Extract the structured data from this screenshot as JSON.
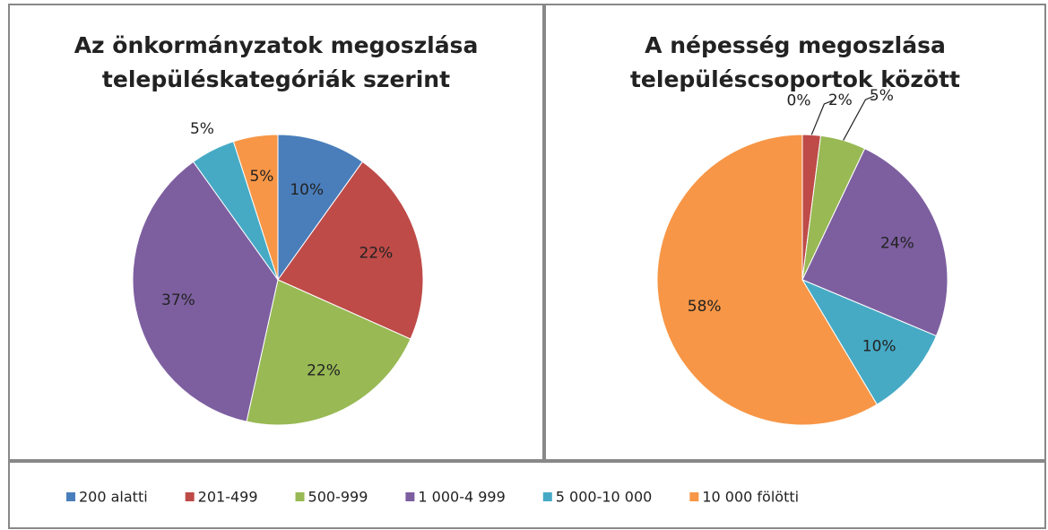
{
  "chart_data": [
    {
      "type": "pie",
      "title": [
        "Az önkormányzatok megoszlása",
        "településkategóriák szerint"
      ],
      "categories": [
        "200 alatti",
        "201-499",
        "500-999",
        "1 000-4 999",
        "5 000-10 000",
        "10 000 fölötti"
      ],
      "values": [
        10,
        22,
        22,
        37,
        5,
        5
      ],
      "value_labels": [
        "10%",
        "22%",
        "22%",
        "37%",
        "5%",
        "5%"
      ],
      "colors": [
        "#4a7ebb",
        "#be4b48",
        "#98b954",
        "#7d5fa0",
        "#46aac5",
        "#f79646"
      ]
    },
    {
      "type": "pie",
      "title": [
        "A népesség megoszlása",
        "településcsoportok között"
      ],
      "categories": [
        "200 alatti",
        "201-499",
        "500-999",
        "1 000-4 999",
        "5 000-10 000",
        "10 000 fölötti"
      ],
      "values": [
        0,
        2,
        5,
        24,
        10,
        58
      ],
      "value_labels": [
        "0%",
        "2%",
        "5%",
        "24%",
        "10%",
        "58%"
      ],
      "colors": [
        "#4a7ebb",
        "#be4b48",
        "#98b954",
        "#7d5fa0",
        "#46aac5",
        "#f79646"
      ]
    }
  ]
}
